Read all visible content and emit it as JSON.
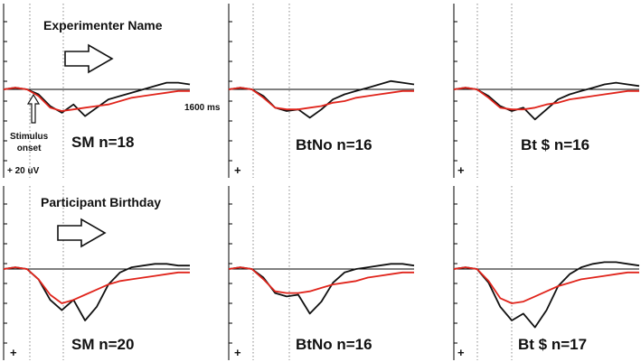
{
  "figure": {
    "heading_top": "Experimenter Name",
    "heading_bottom": "Participant Birthday",
    "stimulus_label_1": "Stimulus",
    "stimulus_label_2": "onset",
    "time_label": "1600 ms",
    "amplitude_label": "+ 20 uV",
    "polarity_mark": "+"
  },
  "colors": {
    "series_black": "#111111",
    "series_red": "#e0241b",
    "axis": "#000000",
    "guide": "#888888"
  },
  "chart_data": [
    {
      "type": "line",
      "panel_label": "SM n=18",
      "x": [
        0,
        100,
        200,
        300,
        400,
        500,
        600,
        700,
        800,
        900,
        1000,
        1100,
        1200,
        1300,
        1400,
        1500,
        1600
      ],
      "series": [
        {
          "color": "black",
          "values": [
            0,
            1,
            0,
            -3,
            -10,
            -14,
            -9,
            -16,
            -11,
            -6,
            -4,
            -2,
            0,
            2,
            4,
            4,
            3
          ]
        },
        {
          "color": "red",
          "values": [
            0,
            1,
            0,
            -4,
            -11,
            -13,
            -12,
            -11,
            -10,
            -9,
            -7,
            -5,
            -4,
            -3,
            -2,
            -1,
            -1
          ]
        }
      ],
      "xlim": [
        0,
        1600
      ]
    },
    {
      "type": "line",
      "panel_label": "BtNo n=16",
      "x": [
        0,
        100,
        200,
        300,
        400,
        500,
        600,
        700,
        800,
        900,
        1000,
        1100,
        1200,
        1300,
        1400,
        1500,
        1600
      ],
      "series": [
        {
          "color": "black",
          "values": [
            0,
            1,
            0,
            -4,
            -11,
            -13,
            -12,
            -17,
            -12,
            -6,
            -3,
            -1,
            1,
            3,
            5,
            4,
            3
          ]
        },
        {
          "color": "red",
          "values": [
            0,
            1,
            0,
            -5,
            -11,
            -12,
            -12,
            -11,
            -10,
            -8,
            -7,
            -5,
            -4,
            -3,
            -2,
            -1,
            -1
          ]
        }
      ],
      "xlim": [
        0,
        1600
      ]
    },
    {
      "type": "line",
      "panel_label": "Bt $ n=16",
      "x": [
        0,
        100,
        200,
        300,
        400,
        500,
        600,
        700,
        800,
        900,
        1000,
        1100,
        1200,
        1300,
        1400,
        1500,
        1600
      ],
      "series": [
        {
          "color": "black",
          "values": [
            0,
            1,
            0,
            -4,
            -10,
            -13,
            -11,
            -18,
            -12,
            -6,
            -3,
            -1,
            1,
            3,
            4,
            3,
            2
          ]
        },
        {
          "color": "red",
          "values": [
            0,
            1,
            0,
            -5,
            -11,
            -12,
            -12,
            -11,
            -9,
            -8,
            -6,
            -5,
            -4,
            -3,
            -2,
            -1,
            -1
          ]
        }
      ],
      "xlim": [
        0,
        1600
      ]
    },
    {
      "type": "line",
      "panel_label": "SM n=20",
      "x": [
        0,
        100,
        200,
        300,
        400,
        500,
        600,
        700,
        800,
        900,
        1000,
        1100,
        1200,
        1300,
        1400,
        1500,
        1600
      ],
      "series": [
        {
          "color": "black",
          "values": [
            0,
            1,
            0,
            -6,
            -18,
            -24,
            -18,
            -30,
            -22,
            -9,
            -2,
            1,
            2,
            3,
            3,
            2,
            2
          ]
        },
        {
          "color": "red",
          "values": [
            0,
            1,
            0,
            -6,
            -15,
            -20,
            -18,
            -15,
            -12,
            -9,
            -7,
            -6,
            -5,
            -4,
            -3,
            -2,
            -2
          ]
        }
      ],
      "xlim": [
        0,
        1600
      ]
    },
    {
      "type": "line",
      "panel_label": "BtNo n=16",
      "x": [
        0,
        100,
        200,
        300,
        400,
        500,
        600,
        700,
        800,
        900,
        1000,
        1100,
        1200,
        1300,
        1400,
        1500,
        1600
      ],
      "series": [
        {
          "color": "black",
          "values": [
            0,
            1,
            0,
            -5,
            -14,
            -16,
            -15,
            -26,
            -19,
            -8,
            -2,
            0,
            1,
            2,
            3,
            3,
            2
          ]
        },
        {
          "color": "red",
          "values": [
            0,
            1,
            0,
            -6,
            -13,
            -14,
            -14,
            -13,
            -11,
            -9,
            -8,
            -7,
            -5,
            -4,
            -3,
            -2,
            -2
          ]
        }
      ],
      "xlim": [
        0,
        1600
      ]
    },
    {
      "type": "line",
      "panel_label": "Bt $ n=17",
      "x": [
        0,
        100,
        200,
        300,
        400,
        500,
        600,
        700,
        800,
        900,
        1000,
        1100,
        1200,
        1300,
        1400,
        1500,
        1600
      ],
      "series": [
        {
          "color": "black",
          "values": [
            0,
            1,
            0,
            -8,
            -22,
            -30,
            -26,
            -34,
            -24,
            -10,
            -3,
            1,
            3,
            4,
            4,
            3,
            2
          ]
        },
        {
          "color": "red",
          "values": [
            0,
            1,
            0,
            -7,
            -17,
            -20,
            -19,
            -16,
            -13,
            -10,
            -8,
            -6,
            -5,
            -4,
            -3,
            -2,
            -2
          ]
        }
      ],
      "xlim": [
        0,
        1600
      ]
    }
  ]
}
